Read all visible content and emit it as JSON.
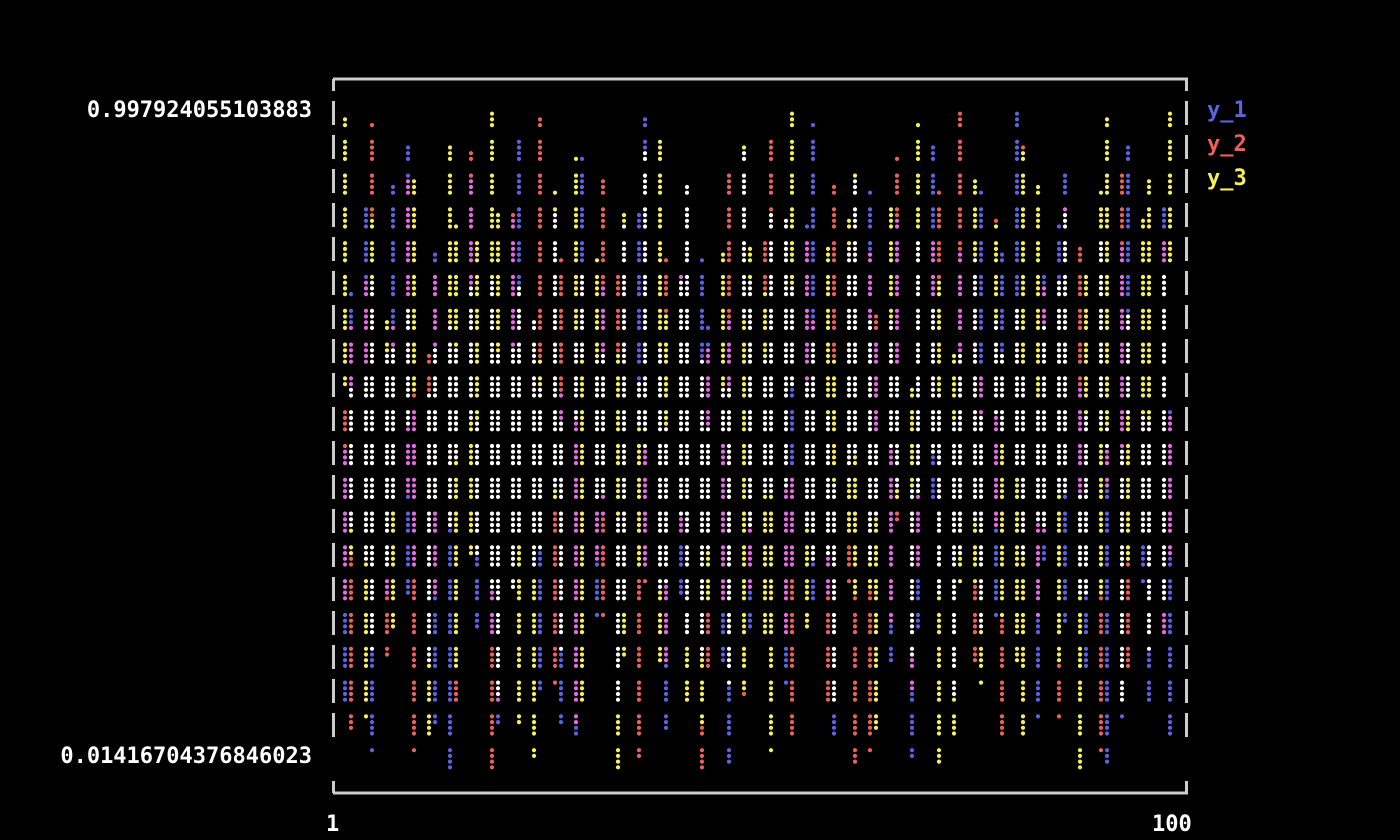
{
  "chart_data": {
    "type": "line",
    "ytick_labels": [
      "0.997924055103883",
      "0.01416704376846023"
    ],
    "xtick_labels": [
      "1",
      "100"
    ],
    "xlim": [
      1,
      100
    ],
    "ylim": [
      0.01416704376846023,
      0.997924055103883
    ],
    "legend_placement": "right",
    "grid": false,
    "series": [
      {
        "name": "y_1",
        "color": "#5b63e6",
        "values": [
          0.12,
          0.71,
          0.33,
          0.85,
          0.05,
          0.62,
          0.41,
          0.93,
          0.27,
          0.55,
          0.18,
          0.78,
          0.02,
          0.66,
          0.48,
          0.88,
          0.36,
          0.21,
          0.74,
          0.09,
          0.57,
          0.95,
          0.31,
          0.68,
          0.14,
          0.83,
          0.44,
          0.06,
          0.59,
          0.91,
          0.25,
          0.72,
          0.38,
          0.11,
          0.81,
          0.52,
          0.97,
          0.29,
          0.64,
          0.08,
          0.46,
          0.87,
          0.19,
          0.76,
          0.35,
          0.58,
          0.03,
          0.69,
          0.92,
          0.23,
          0.61,
          0.42,
          0.84,
          0.15,
          0.73,
          0.37,
          0.96,
          0.26,
          0.54,
          0.07,
          0.79,
          0.49,
          0.89,
          0.32,
          0.65,
          0.17,
          0.82,
          0.45,
          0.04,
          0.63,
          0.94,
          0.28,
          0.56,
          0.13,
          0.77,
          0.39,
          0.86,
          0.22,
          0.67,
          0.51,
          0.98,
          0.34,
          0.6,
          0.1,
          0.75,
          0.43,
          0.9,
          0.24,
          0.58,
          0.16,
          0.8,
          0.47,
          0.03,
          0.7,
          0.93,
          0.3,
          0.53,
          0.12,
          0.85,
          0.06
        ]
      },
      {
        "name": "y_2",
        "color": "#f0605a",
        "values": [
          0.55,
          0.08,
          0.74,
          0.31,
          0.96,
          0.19,
          0.66,
          0.42,
          0.88,
          0.05,
          0.63,
          0.27,
          0.81,
          0.47,
          0.12,
          0.92,
          0.35,
          0.7,
          0.02,
          0.58,
          0.84,
          0.23,
          0.67,
          0.4,
          0.97,
          0.15,
          0.52,
          0.78,
          0.09,
          0.61,
          0.33,
          0.89,
          0.21,
          0.75,
          0.46,
          0.04,
          0.69,
          0.28,
          0.93,
          0.17,
          0.56,
          0.83,
          0.38,
          0.01,
          0.64,
          0.26,
          0.9,
          0.48,
          0.13,
          0.72,
          0.36,
          0.95,
          0.2,
          0.59,
          0.07,
          0.8,
          0.43,
          0.68,
          0.11,
          0.87,
          0.3,
          0.62,
          0.03,
          0.77,
          0.5,
          0.24,
          0.91,
          0.39,
          0.14,
          0.71,
          0.57,
          0.86,
          0.22,
          0.45,
          0.99,
          0.18,
          0.6,
          0.34,
          0.82,
          0.06,
          0.65,
          0.41,
          0.94,
          0.25,
          0.73,
          0.1,
          0.53,
          0.85,
          0.32,
          0.67,
          0.05,
          0.79,
          0.44,
          0.9,
          0.16,
          0.63,
          0.37,
          0.88,
          0.21,
          0.54
        ]
      },
      {
        "name": "y_3",
        "color": "#f7ef5a",
        "values": [
          0.97,
          0.34,
          0.6,
          0.1,
          0.82,
          0.45,
          0.23,
          0.7,
          0.52,
          0.89,
          0.07,
          0.64,
          0.38,
          0.94,
          0.16,
          0.58,
          0.8,
          0.29,
          0.99,
          0.13,
          0.47,
          0.73,
          0.04,
          0.67,
          0.35,
          0.86,
          0.2,
          0.55,
          0.91,
          0.11,
          0.76,
          0.42,
          0.63,
          0.02,
          0.84,
          0.31,
          0.57,
          0.95,
          0.18,
          0.69,
          0.4,
          0.87,
          0.09,
          0.61,
          0.26,
          0.78,
          0.5,
          0.14,
          0.93,
          0.37,
          0.71,
          0.05,
          0.83,
          0.44,
          0.98,
          0.22,
          0.65,
          0.33,
          0.79,
          0.12,
          0.56,
          0.9,
          0.27,
          0.68,
          0.08,
          0.85,
          0.41,
          0.6,
          0.19,
          0.96,
          0.49,
          0.74,
          0.03,
          0.62,
          0.3,
          0.88,
          0.15,
          0.53,
          0.81,
          0.25,
          0.7,
          0.06,
          0.92,
          0.39,
          0.66,
          0.17,
          0.84,
          0.46,
          0.01,
          0.75,
          0.28,
          0.97,
          0.54,
          0.12,
          0.69,
          0.36,
          0.89,
          0.2,
          0.62,
          0.98
        ]
      }
    ]
  }
}
